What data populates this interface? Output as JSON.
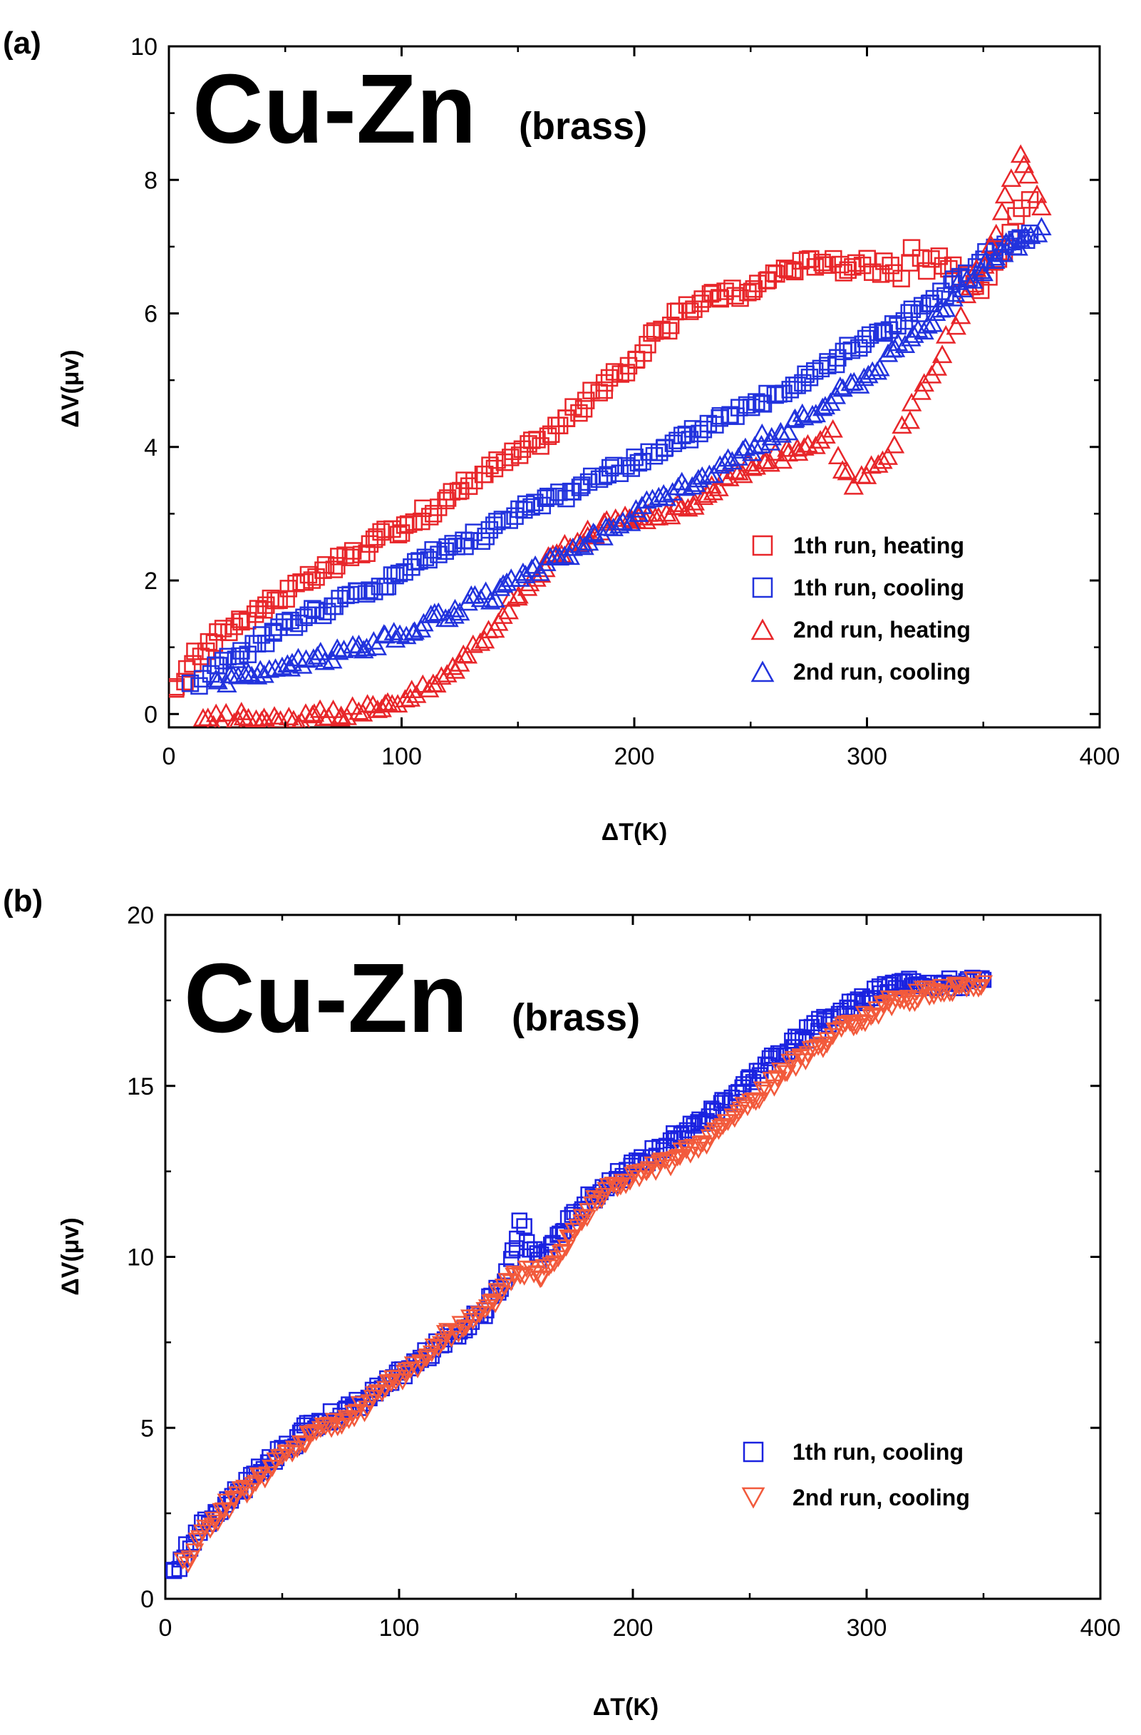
{
  "chart_data": [
    {
      "type": "scatter",
      "panel_label": "(a)",
      "title": "Cu-Zn",
      "subtitle": "(brass)",
      "xlabel": "ΔT(K)",
      "ylabel": "ΔV(μv)",
      "xlim": [
        0,
        400
      ],
      "ylim": [
        -0.2,
        10
      ],
      "xticks": [
        0,
        100,
        200,
        300,
        400
      ],
      "yticks": [
        0,
        2,
        4,
        6,
        8,
        10
      ],
      "xtick_labels": [
        "0",
        "100",
        "200",
        "300",
        "400"
      ],
      "ytick_labels": [
        "0",
        "2",
        "4",
        "6",
        "8",
        "10"
      ],
      "legend_position": "bottom-right",
      "series": [
        {
          "name": "1th  run, heating",
          "marker": "square",
          "color": "#e8262a",
          "x": [
            2,
            10,
            20,
            30,
            40,
            50,
            60,
            70,
            80,
            90,
            100,
            110,
            120,
            130,
            140,
            150,
            160,
            170,
            180,
            190,
            200,
            210,
            220,
            230,
            240,
            250,
            260,
            270,
            280,
            290,
            300,
            305,
            310,
            315,
            320,
            325,
            330,
            335,
            340,
            345,
            350,
            355,
            360,
            365,
            370
          ],
          "y": [
            0.3,
            0.8,
            1.1,
            1.4,
            1.6,
            1.8,
            2.0,
            2.2,
            2.4,
            2.6,
            2.8,
            3.0,
            3.2,
            3.5,
            3.7,
            3.9,
            4.1,
            4.4,
            4.7,
            5.0,
            5.3,
            5.7,
            6.0,
            6.2,
            6.3,
            6.3,
            6.6,
            6.7,
            6.8,
            6.7,
            6.8,
            6.6,
            6.8,
            6.5,
            6.9,
            6.6,
            6.9,
            6.7,
            6.6,
            6.5,
            6.4,
            6.7,
            7.0,
            7.5,
            7.7
          ]
        },
        {
          "name": "1th  run, cooling",
          "marker": "square",
          "color": "#2233dd",
          "x": [
            10,
            15,
            20,
            30,
            40,
            50,
            60,
            70,
            80,
            90,
            100,
            110,
            120,
            130,
            140,
            150,
            160,
            170,
            180,
            190,
            200,
            210,
            220,
            230,
            240,
            250,
            260,
            270,
            280,
            290,
            300,
            310,
            320,
            330,
            340,
            350,
            360,
            370
          ],
          "y": [
            0.4,
            0.6,
            0.7,
            0.9,
            1.1,
            1.3,
            1.5,
            1.6,
            1.8,
            1.9,
            2.1,
            2.3,
            2.5,
            2.6,
            2.8,
            3.0,
            3.2,
            3.3,
            3.5,
            3.6,
            3.8,
            3.9,
            4.1,
            4.3,
            4.5,
            4.6,
            4.8,
            5.0,
            5.2,
            5.4,
            5.6,
            5.8,
            6.0,
            6.2,
            6.5,
            6.8,
            7.0,
            7.2
          ]
        },
        {
          "name": "2nd run, heating",
          "marker": "triangle-up",
          "color": "#e8262a",
          "x": [
            15,
            25,
            35,
            45,
            55,
            65,
            75,
            85,
            95,
            105,
            115,
            125,
            135,
            145,
            155,
            165,
            175,
            185,
            195,
            205,
            215,
            225,
            235,
            245,
            255,
            265,
            275,
            285,
            290,
            295,
            300,
            305,
            310,
            315,
            320,
            325,
            330,
            335,
            340,
            345,
            350,
            355,
            360,
            365,
            370,
            375
          ],
          "y": [
            -0.1,
            -0.05,
            0.0,
            -0.1,
            -0.1,
            0.0,
            0.0,
            0.1,
            0.2,
            0.3,
            0.5,
            0.8,
            1.2,
            1.6,
            2.0,
            2.4,
            2.6,
            2.8,
            2.9,
            2.9,
            3.0,
            3.2,
            3.4,
            3.6,
            3.8,
            3.9,
            4.0,
            4.2,
            3.7,
            3.5,
            3.6,
            3.8,
            3.9,
            4.3,
            4.6,
            4.9,
            5.2,
            5.6,
            6.0,
            6.4,
            6.8,
            7.2,
            7.8,
            8.3,
            8.0,
            7.6
          ]
        },
        {
          "name": "2nd run, cooling",
          "marker": "triangle-up",
          "color": "#2233dd",
          "x": [
            20,
            30,
            40,
            50,
            60,
            70,
            80,
            90,
            100,
            110,
            120,
            130,
            140,
            150,
            160,
            170,
            180,
            190,
            200,
            210,
            220,
            230,
            240,
            250,
            260,
            270,
            280,
            290,
            300,
            310,
            320,
            330,
            340,
            350,
            360,
            370,
            375
          ],
          "y": [
            0.5,
            0.6,
            0.6,
            0.7,
            0.8,
            0.9,
            1.0,
            1.1,
            1.2,
            1.4,
            1.5,
            1.7,
            1.8,
            2.0,
            2.2,
            2.4,
            2.6,
            2.8,
            3.0,
            3.2,
            3.4,
            3.6,
            3.8,
            4.0,
            4.2,
            4.4,
            4.6,
            4.9,
            5.1,
            5.4,
            5.7,
            6.0,
            6.4,
            6.7,
            7.0,
            7.2,
            7.3
          ]
        }
      ]
    },
    {
      "type": "scatter",
      "panel_label": "(b)",
      "title": "Cu-Zn",
      "subtitle": "(brass)",
      "xlabel": "ΔT(K)",
      "ylabel": "ΔV(μv)",
      "xlim": [
        0,
        400
      ],
      "ylim": [
        0,
        20
      ],
      "xticks": [
        0,
        100,
        200,
        300,
        400
      ],
      "yticks": [
        0,
        5,
        10,
        15,
        20
      ],
      "xtick_labels": [
        "0",
        "100",
        "200",
        "300",
        "400"
      ],
      "ytick_labels": [
        "0",
        "5",
        "10",
        "15",
        "20"
      ],
      "legend_position": "bottom-right",
      "series": [
        {
          "name": "1th  run, cooling",
          "marker": "square",
          "color": "#1a22e0",
          "x": [
            3,
            8,
            15,
            25,
            35,
            45,
            55,
            65,
            75,
            85,
            95,
            105,
            115,
            125,
            135,
            140,
            145,
            150,
            152,
            155,
            160,
            170,
            180,
            190,
            200,
            210,
            220,
            230,
            240,
            250,
            260,
            270,
            280,
            290,
            300,
            310,
            320,
            330,
            340,
            350
          ],
          "y": [
            0.7,
            1.3,
            2.0,
            2.8,
            3.4,
            4.0,
            4.6,
            5.2,
            5.4,
            5.8,
            6.3,
            6.8,
            7.3,
            7.8,
            8.3,
            8.8,
            9.3,
            10.3,
            11.0,
            10.5,
            9.9,
            10.8,
            11.6,
            12.2,
            12.6,
            13.1,
            13.6,
            14.0,
            14.6,
            15.2,
            15.8,
            16.3,
            16.8,
            17.2,
            17.6,
            17.9,
            18.1,
            18.0,
            18.0,
            18.1
          ]
        },
        {
          "name": "2nd run, cooling",
          "marker": "triangle-down",
          "color": "#f25a3c",
          "x": [
            8,
            15,
            25,
            35,
            45,
            55,
            65,
            75,
            85,
            95,
            105,
            115,
            125,
            135,
            140,
            145,
            150,
            155,
            160,
            170,
            180,
            190,
            200,
            210,
            220,
            230,
            240,
            250,
            260,
            270,
            280,
            290,
            300,
            310,
            320,
            330,
            340,
            350
          ],
          "y": [
            1.0,
            1.8,
            2.6,
            3.2,
            3.8,
            4.4,
            4.9,
            5.1,
            5.6,
            6.2,
            6.7,
            7.3,
            7.9,
            8.3,
            8.6,
            9.2,
            9.5,
            9.6,
            9.4,
            10.3,
            11.3,
            12.0,
            12.3,
            12.6,
            12.9,
            13.3,
            13.9,
            14.5,
            15.1,
            15.7,
            16.2,
            16.6,
            17.0,
            17.4,
            17.6,
            17.8,
            17.9,
            18.0
          ]
        }
      ]
    }
  ]
}
